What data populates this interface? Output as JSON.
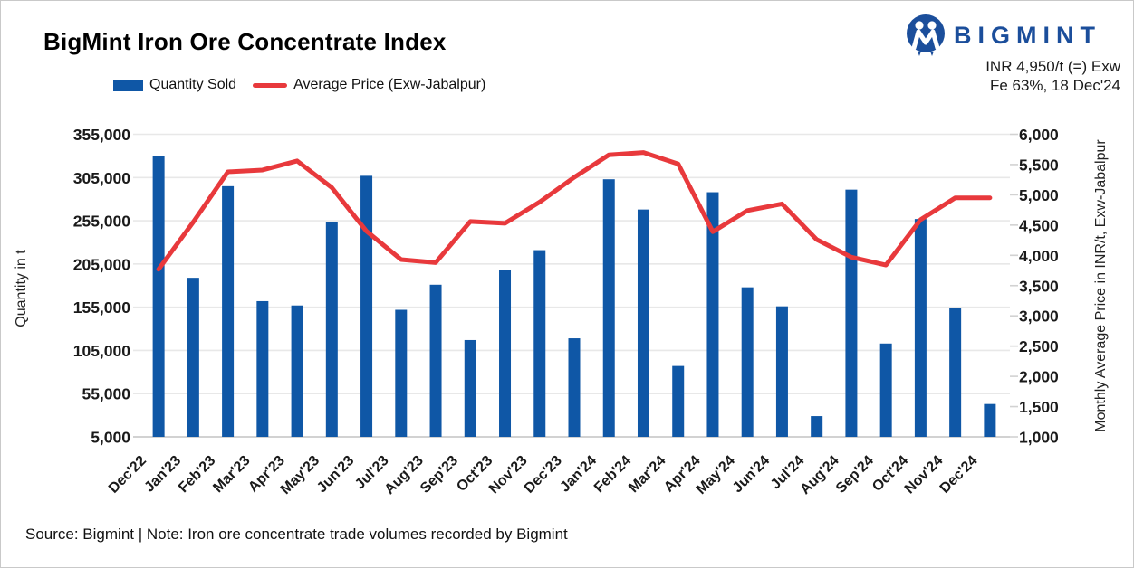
{
  "header": {
    "title": "BigMint Iron Ore Concentrate Index",
    "brand": "BIGMINT",
    "price_note_line1": "INR 4,950/t (=) Exw",
    "price_note_line2": "Fe 63%, 18 Dec'24"
  },
  "legend": {
    "quantity_label": "Quantity Sold",
    "price_label": "Average Price (Exw-Jabalpur)"
  },
  "footer": {
    "source_note": "Source: Bigmint | Note: Iron ore concentrate trade volumes recorded by Bigmint"
  },
  "colors": {
    "bar_blue": "#0f57a6",
    "line_red": "#e8393c",
    "brand_navy": "#1b4e9b",
    "gridline": "#e8e8e8",
    "axis_line": "#d2d2d2"
  },
  "chart_data": {
    "type": "bar",
    "subtype": "bar+line dual axis",
    "title": "BigMint Iron Ore Concentrate Index",
    "grid": true,
    "legend_position": "top",
    "categories": [
      "Dec'22",
      "Jan'23",
      "Feb'23",
      "Mar'23",
      "Apr'23",
      "May'23",
      "Jun'23",
      "Jul'23",
      "Aug'23",
      "Sep'23",
      "Oct'23",
      "Nov'23",
      "Dec'23",
      "Jan'24",
      "Feb'24",
      "Mar'24",
      "Apr'24",
      "May'24",
      "Jun'24",
      "Jul'24",
      "Aug'24",
      "Sep'24",
      "Oct'24",
      "Nov'24",
      "Dec'24"
    ],
    "series": [
      {
        "name": "Quantity Sold",
        "type": "bar",
        "axis": "left",
        "values": [
          330000,
          189000,
          295000,
          162000,
          157000,
          253000,
          307000,
          152000,
          181000,
          117000,
          198000,
          221000,
          119000,
          303000,
          268000,
          87000,
          288000,
          178000,
          156000,
          29000,
          291000,
          113000,
          257000,
          154000,
          43000
        ]
      },
      {
        "name": "Average Price (Exw-Jabalpur)",
        "type": "line",
        "axis": "right",
        "values": [
          3770,
          4550,
          5380,
          5410,
          5560,
          5120,
          4400,
          3930,
          3880,
          4560,
          4530,
          4880,
          5290,
          5660,
          5700,
          5510,
          4390,
          4740,
          4850,
          4260,
          3970,
          3840,
          4590,
          4950,
          4950
        ]
      }
    ],
    "left_axis": {
      "label": "Quantity in t",
      "min": 5000,
      "max": 355000,
      "step": 50000,
      "ticks": [
        "5,000",
        "55,000",
        "105,000",
        "155,000",
        "205,000",
        "255,000",
        "305,000",
        "355,000"
      ]
    },
    "right_axis": {
      "label": "Monthly Average Price in INR/t, Exw-Jabalpur",
      "min": 1000,
      "max": 6000,
      "step": 500,
      "ticks": [
        "1,000",
        "1,500",
        "2,000",
        "2,500",
        "3,000",
        "3,500",
        "4,000",
        "4,500",
        "5,000",
        "5,500",
        "6,000"
      ]
    }
  }
}
